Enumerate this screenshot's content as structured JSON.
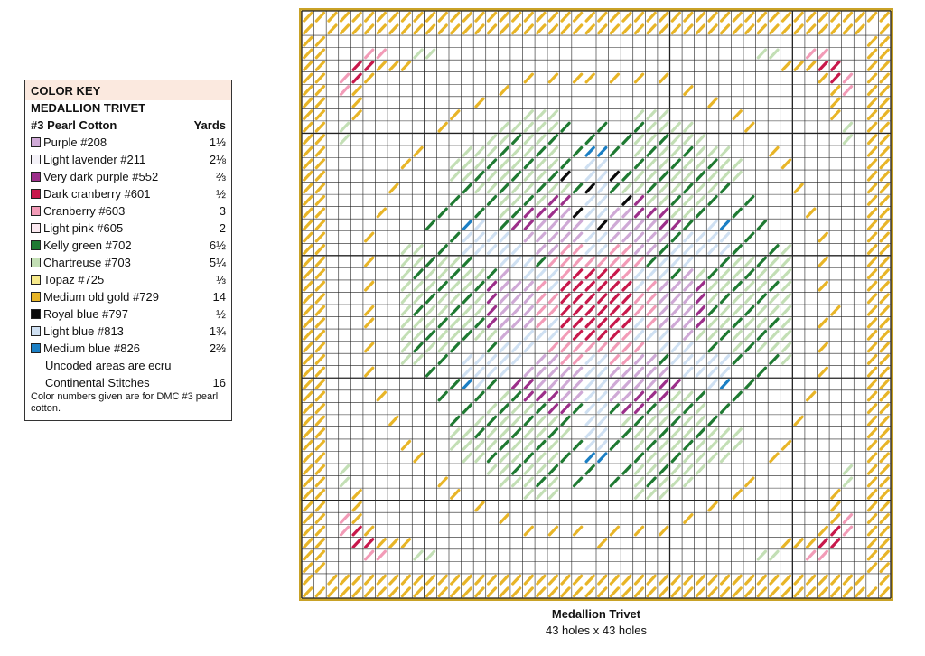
{
  "legend": {
    "header": "COLOR KEY",
    "project": "MEDALLION TRIVET",
    "thread_label": "#3 Pearl Cotton",
    "yards_label": "Yards",
    "colors": [
      {
        "name": "Purple #208",
        "yards": "1⅓",
        "hex": "#cfa9d6"
      },
      {
        "name": "Light lavender #211",
        "yards": "2⅛",
        "hex": "#f4f2f8"
      },
      {
        "name": "Very dark purple #552",
        "yards": "⅔",
        "hex": "#9c2f8a"
      },
      {
        "name": "Dark cranberry #601",
        "yards": "½",
        "hex": "#c8184b"
      },
      {
        "name": "Cranberry #603",
        "yards": "3",
        "hex": "#f29bb7"
      },
      {
        "name": "Light pink #605",
        "yards": "2",
        "hex": "#fbe9f0"
      },
      {
        "name": "Kelly green #702",
        "yards": "6½",
        "hex": "#1f7a32"
      },
      {
        "name": "Chartreuse #703",
        "yards": "5¼",
        "hex": "#c3dfb5"
      },
      {
        "name": "Topaz #725",
        "yards": "⅓",
        "hex": "#f6e98a"
      },
      {
        "name": "Medium old gold #729",
        "yards": "14",
        "hex": "#e8b527"
      },
      {
        "name": "Royal blue #797",
        "yards": "½",
        "hex": "#0a0a0a"
      },
      {
        "name": "Light blue #813",
        "yards": "1¾",
        "hex": "#cfe0f2"
      },
      {
        "name": "Medium blue #826",
        "yards": "2⅔",
        "hex": "#1b7fc4"
      }
    ],
    "uncoded_note": "Uncoded areas are ecru",
    "stitch_label": "Continental Stitches",
    "stitch_yards": "16",
    "footnote": "Color numbers given are for DMC #3 pearl cotton."
  },
  "chart": {
    "title": "Medallion Trivet",
    "size": "43 holes x 43 holes",
    "holes": 43,
    "colors": {
      "grid": "#222222",
      "frame": "#c9a227",
      "gold": "#e8b527",
      "kelly_green": "#1f7a32",
      "chartreuse": "#c3dfb5",
      "purple": "#cfa9d6",
      "very_dark_purple": "#9c2f8a",
      "dark_cranberry": "#c8184b",
      "cranberry": "#f29bb7",
      "light_pink": "#fbe9f0",
      "light_blue": "#cfe0f2",
      "medium_blue": "#1b7fc4",
      "royal_blue": "#0a0a0a"
    }
  }
}
